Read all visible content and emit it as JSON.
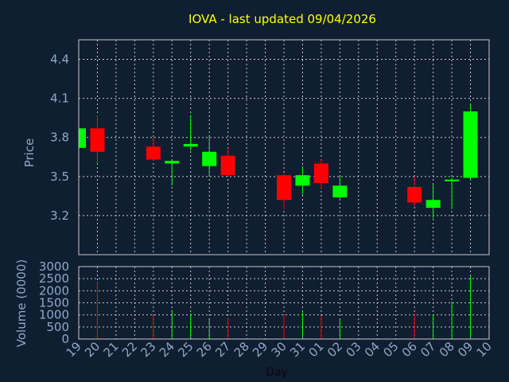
{
  "chart_data": {
    "type": "candlestick",
    "title": "IOVA - last updated 09/04/2026",
    "xlabel": "Day",
    "price_panel": {
      "ylabel": "Price",
      "ylim": [
        2.9,
        4.55
      ],
      "yticks": [
        "3.2",
        "3.5",
        "3.8",
        "4.1",
        "4.4"
      ]
    },
    "volume_panel": {
      "ylabel": "Volume (0000)",
      "ylim": [
        0,
        3000
      ],
      "yticks": [
        "0",
        "500",
        "1000",
        "1500",
        "2000",
        "2500",
        "3000"
      ]
    },
    "x_ticks": [
      "19",
      "20",
      "21",
      "22",
      "23",
      "24",
      "25",
      "26",
      "27",
      "28",
      "29",
      "30",
      "31",
      "01",
      "02",
      "03",
      "04",
      "05",
      "06",
      "07",
      "08",
      "09",
      "10"
    ],
    "colors": {
      "up": "#00ff00",
      "down": "#ff0000",
      "background": "#0f1e30",
      "title": "#ffff00",
      "axis_text": "#8fa8c8"
    },
    "candles": [
      {
        "day": "19",
        "open": 3.72,
        "close": 3.87,
        "high": 3.88,
        "low": 3.71,
        "volume": 0
      },
      {
        "day": "20",
        "open": 3.87,
        "close": 3.69,
        "high": 3.97,
        "low": 3.6,
        "volume": 2380
      },
      {
        "day": "23",
        "open": 3.73,
        "close": 3.63,
        "high": 3.8,
        "low": 3.62,
        "volume": 950
      },
      {
        "day": "24",
        "open": 3.6,
        "close": 3.62,
        "high": 3.63,
        "low": 3.43,
        "volume": 1200
      },
      {
        "day": "25",
        "open": 3.73,
        "close": 3.75,
        "high": 3.97,
        "low": 3.7,
        "volume": 1050
      },
      {
        "day": "26",
        "open": 3.58,
        "close": 3.69,
        "high": 3.82,
        "low": 3.5,
        "volume": 800
      },
      {
        "day": "27",
        "open": 3.66,
        "close": 3.51,
        "high": 3.72,
        "low": 3.5,
        "volume": 850
      },
      {
        "day": "30",
        "open": 3.51,
        "close": 3.32,
        "high": 3.52,
        "low": 3.25,
        "volume": 1000
      },
      {
        "day": "31",
        "open": 3.43,
        "close": 3.51,
        "high": 3.58,
        "low": 3.36,
        "volume": 1100
      },
      {
        "day": "01",
        "open": 3.6,
        "close": 3.45,
        "high": 3.63,
        "low": 3.4,
        "volume": 950
      },
      {
        "day": "02",
        "open": 3.34,
        "close": 3.43,
        "high": 3.5,
        "low": 3.32,
        "volume": 800
      },
      {
        "day": "06",
        "open": 3.42,
        "close": 3.3,
        "high": 3.5,
        "low": 3.27,
        "volume": 1050
      },
      {
        "day": "07",
        "open": 3.26,
        "close": 3.32,
        "high": 3.44,
        "low": 3.18,
        "volume": 1000
      },
      {
        "day": "08",
        "open": 3.46,
        "close": 3.47,
        "high": 3.49,
        "low": 3.25,
        "volume": 1550
      },
      {
        "day": "09",
        "open": 3.49,
        "close": 4.0,
        "high": 4.05,
        "low": 3.47,
        "volume": 2600
      }
    ]
  }
}
